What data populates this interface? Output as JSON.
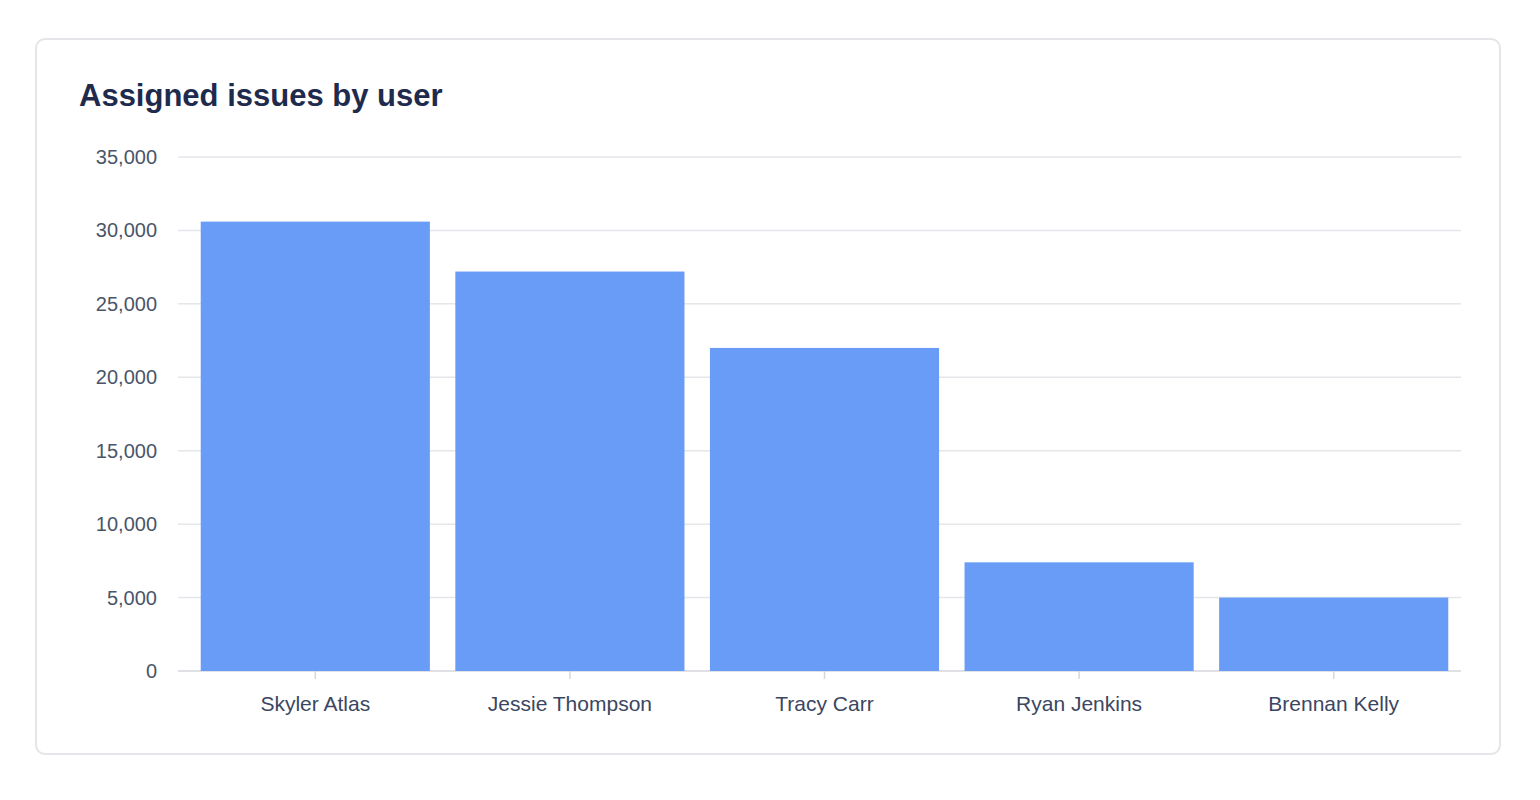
{
  "chart_data": {
    "type": "bar",
    "title": "Assigned issues by user",
    "categories": [
      "Skyler Atlas",
      "Jessie Thompson",
      "Tracy Carr",
      "Ryan Jenkins",
      "Brennan Kelly"
    ],
    "values": [
      30600,
      27200,
      22000,
      7400,
      5000
    ],
    "color": "#689cf6",
    "ylim": [
      0,
      35000
    ],
    "yticks": [
      0,
      {
        "value": 5000,
        "label": "5,000"
      },
      {
        "value": 10000,
        "label": "10,000"
      },
      {
        "value": 15000,
        "label": "15,000"
      },
      {
        "value": 20000,
        "label": "20,000"
      },
      {
        "value": 25000,
        "label": "25,000"
      },
      {
        "value": 30000,
        "label": "30,000"
      },
      {
        "value": 35000,
        "label": "35,000"
      }
    ],
    "grid": true
  }
}
